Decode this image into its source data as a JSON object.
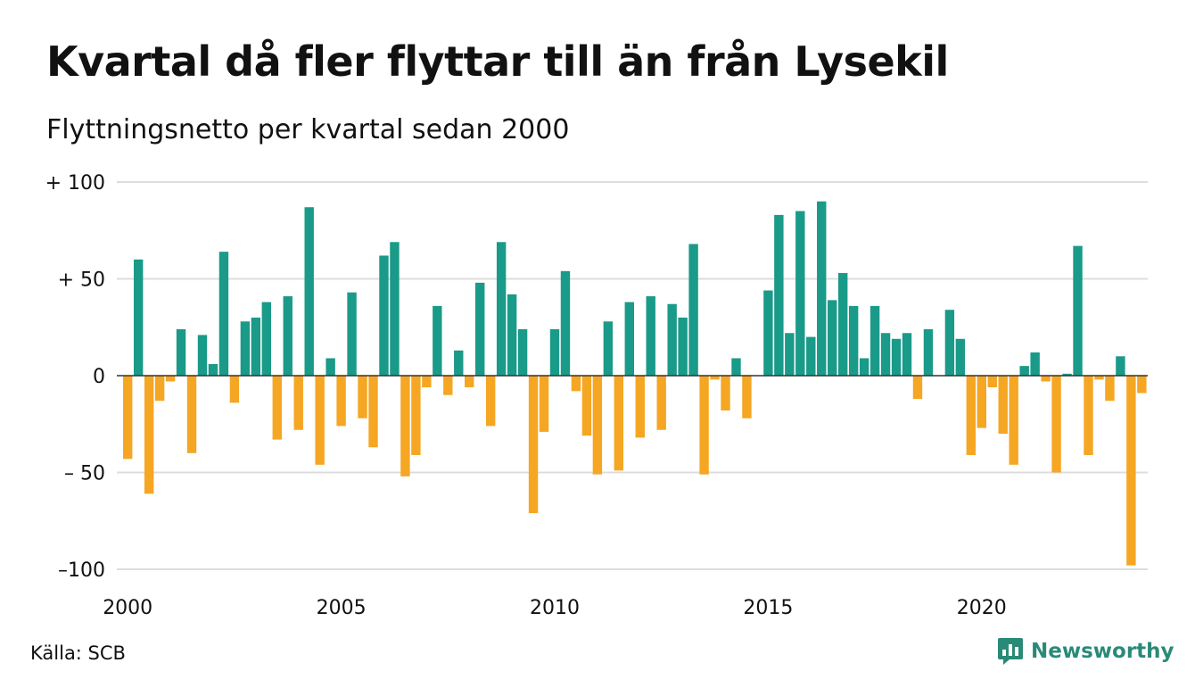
{
  "header": {
    "title": "Kvartal då fler flyttar till än från Lysekil",
    "subtitle": "Flyttningsnetto per kvartal sedan 2000"
  },
  "footer": {
    "source": "Källa: SCB",
    "brand": "Newsworthy",
    "brand_icon": "bar-chart-speech-bubble-icon"
  },
  "colors": {
    "positive": "#1a9a88",
    "negative": "#f5a623",
    "grid": "#dddddd",
    "zero_line": "#333333",
    "brand": "#2a8a78"
  },
  "chart_data": {
    "type": "bar",
    "title": "Kvartal då fler flyttar till än från Lysekil",
    "subtitle": "Flyttningsnetto per kvartal sedan 2000",
    "ylim": [
      -100,
      100
    ],
    "y_ticks": [
      100,
      50,
      0,
      -50,
      -100
    ],
    "y_tick_labels": [
      "+ 100",
      "+  50",
      "0",
      "– 50",
      "–100"
    ],
    "x_ticks": [
      2000,
      2005,
      2010,
      2015,
      2020
    ],
    "x_tick_labels": [
      "2000",
      "2005",
      "2010",
      "2015",
      "2020"
    ],
    "x_start": 2000,
    "quarters_per_year": 4,
    "grid": true,
    "values": [
      -43,
      60,
      -61,
      -13,
      -3,
      24,
      -40,
      21,
      6,
      64,
      -14,
      28,
      30,
      38,
      -33,
      41,
      -28,
      87,
      -46,
      9,
      -26,
      43,
      -22,
      -37,
      62,
      69,
      -52,
      -41,
      -6,
      36,
      -10,
      13,
      -6,
      48,
      -26,
      69,
      42,
      24,
      -71,
      -29,
      24,
      54,
      -8,
      -31,
      -51,
      28,
      -49,
      38,
      -32,
      41,
      -28,
      37,
      30,
      68,
      -51,
      -2,
      -18,
      9,
      -22,
      0,
      44,
      83,
      22,
      85,
      20,
      90,
      39,
      53,
      36,
      9,
      36,
      22,
      19,
      22,
      -12,
      24,
      0,
      34,
      19,
      -41,
      -27,
      -6,
      -30,
      -46,
      5,
      12,
      -3,
      -50,
      1,
      67,
      -41,
      -2,
      -13,
      10,
      -98,
      -9
    ]
  }
}
